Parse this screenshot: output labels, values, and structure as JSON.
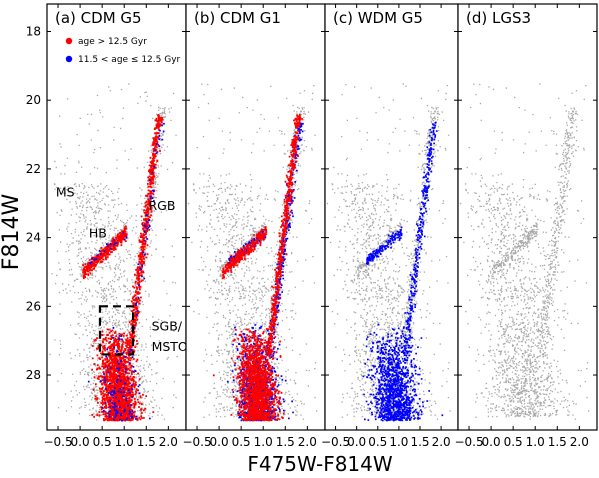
{
  "chart_data": {
    "type": "scatter",
    "xlabel": "F475W-F814W",
    "ylabel": "F814W",
    "xlim": [
      -0.75,
      2.4
    ],
    "ylim": [
      29.6,
      17.2
    ],
    "y_axis_inverted": true,
    "xticks": [
      {
        "v": -0.5,
        "t": "−0.5"
      },
      {
        "v": 0.0,
        "t": "0.0"
      },
      {
        "v": 0.5,
        "t": "0.5"
      },
      {
        "v": 1.0,
        "t": "1.0"
      },
      {
        "v": 1.5,
        "t": "1.5"
      },
      {
        "v": 2.0,
        "t": "2.0"
      }
    ],
    "yticks": [
      {
        "v": 18,
        "t": "18"
      },
      {
        "v": 20,
        "t": "20"
      },
      {
        "v": 22,
        "t": "22"
      },
      {
        "v": 24,
        "t": "24"
      },
      {
        "v": 26,
        "t": "26"
      },
      {
        "v": 28,
        "t": "28"
      }
    ],
    "legend": [
      {
        "label": "age > 12.5 Gyr",
        "color": "#ff0000"
      },
      {
        "label": "11.5 < age ≤ 12.5 Gyr",
        "color": "#0000ff"
      }
    ],
    "legend_placement": "top-left",
    "colors": {
      "old": "#ff0000",
      "young": "#0000ff",
      "background": "#8c8c8c"
    },
    "box": {
      "x": [
        0.45,
        1.2
      ],
      "y": [
        26.0,
        27.4
      ]
    },
    "panels": [
      {
        "title": "(a) CDM G5",
        "annotations": [
          {
            "text": "MS",
            "x": -0.55,
            "y": 22.8
          },
          {
            "text": "HB",
            "x": 0.2,
            "y": 24.0
          },
          {
            "text": "RGB",
            "x": 1.55,
            "y": 23.2
          },
          {
            "text": "SGB/",
            "x": 1.62,
            "y": 26.7
          },
          {
            "text": "MSTO",
            "x": 1.62,
            "y": 27.3
          }
        ],
        "old_density": 1.0,
        "young_density": 0.08,
        "show_box": true,
        "show_legend": true
      },
      {
        "title": "(b) CDM G1",
        "annotations": [],
        "old_density": 0.9,
        "young_density": 0.55,
        "show_box": false,
        "show_legend": false
      },
      {
        "title": "(c) WDM G5",
        "annotations": [],
        "old_density": 0.0,
        "young_density": 0.6,
        "show_box": false,
        "show_legend": false
      },
      {
        "title": "(d) LGS3",
        "annotations": [],
        "old_density": 0.0,
        "young_density": 0.0,
        "show_box": false,
        "show_legend": false
      }
    ]
  }
}
